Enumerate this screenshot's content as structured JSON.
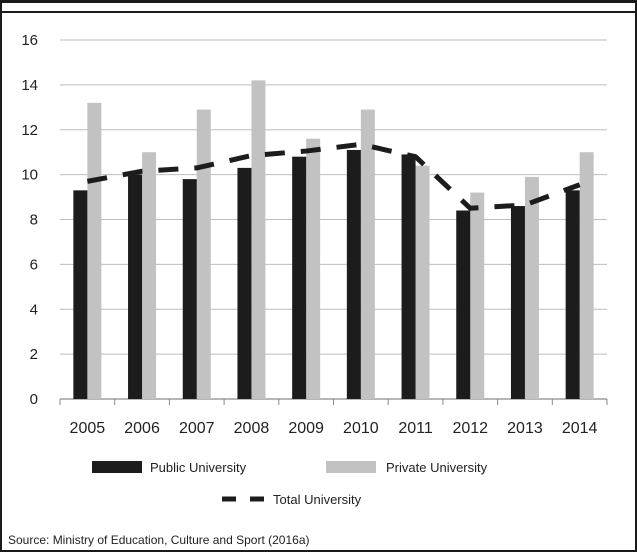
{
  "chart_data": {
    "type": "bar",
    "categories": [
      "2005",
      "2006",
      "2007",
      "2008",
      "2009",
      "2010",
      "2011",
      "2012",
      "2013",
      "2014"
    ],
    "series": [
      {
        "name": "Public University",
        "kind": "bar",
        "color": "#1c1c1c",
        "values": [
          9.3,
          10.0,
          9.8,
          10.3,
          10.8,
          11.1,
          10.9,
          8.4,
          8.6,
          9.3
        ]
      },
      {
        "name": "Private University",
        "kind": "bar",
        "color": "#c2c2c2",
        "values": [
          13.2,
          11.0,
          12.9,
          14.2,
          11.6,
          12.9,
          10.4,
          9.2,
          9.9,
          11.0
        ]
      },
      {
        "name": "Total University",
        "kind": "line",
        "style": "dashed",
        "color": "#1c1c1c",
        "values": [
          9.7,
          10.15,
          10.3,
          10.85,
          11.05,
          11.35,
          10.8,
          8.5,
          8.65,
          9.55
        ]
      }
    ],
    "ylim": [
      0,
      16
    ],
    "yticks": [
      "0",
      "2",
      "4",
      "6",
      "8",
      "10",
      "12",
      "14",
      "16"
    ],
    "grid": true,
    "legend_placement": "bottom",
    "source": "Source: Ministry of Education, Culture and Sport (2016a)"
  }
}
